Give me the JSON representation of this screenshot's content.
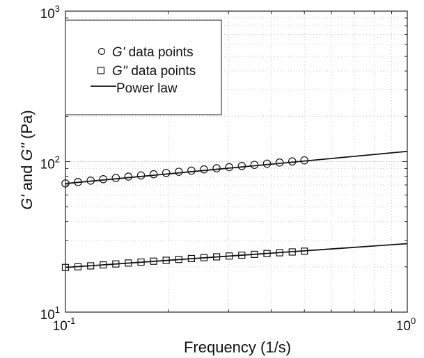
{
  "chart_data": {
    "type": "scatter",
    "x_scale": "log",
    "y_scale": "log",
    "xlim": [
      0.1,
      1
    ],
    "ylim": [
      10,
      1000
    ],
    "xlabel": "Frequency (1/s)",
    "ylabel": {
      "part1": "G'",
      "part2": " and ",
      "part3": "G''",
      "part4": " (Pa)"
    },
    "x_ticks": [
      {
        "base": "10",
        "exp": "-1"
      },
      {
        "base": "10",
        "exp": "0"
      }
    ],
    "y_ticks": [
      {
        "base": "10",
        "exp": "1"
      },
      {
        "base": "10",
        "exp": "2"
      },
      {
        "base": "10",
        "exp": "3"
      }
    ],
    "grid": true,
    "legend_position": "top-left",
    "legend": [
      {
        "marker": "circle",
        "symbol": "G'",
        "text": " data points"
      },
      {
        "marker": "square",
        "symbol": "G''",
        "text": " data points"
      },
      {
        "marker": "line",
        "symbol": "",
        "text": "Power law"
      }
    ],
    "series": [
      {
        "name": "G' data points",
        "marker": "circle",
        "x": [
          0.1,
          0.1088,
          0.1185,
          0.129,
          0.1404,
          0.1528,
          0.1664,
          0.1811,
          0.1971,
          0.2146,
          0.2336,
          0.2543,
          0.2768,
          0.3013,
          0.328,
          0.3571,
          0.3887,
          0.4232,
          0.4607,
          0.5
        ],
        "y": [
          71.6,
          73.2,
          74.8,
          76.4,
          77.9,
          79.5,
          80.9,
          82.5,
          84.1,
          85.6,
          87.1,
          88.8,
          90.3,
          91.9,
          93.5,
          95.2,
          96.9,
          98.6,
          100.3,
          102.0
        ]
      },
      {
        "name": "G'' data points",
        "marker": "square",
        "x": [
          0.1,
          0.1088,
          0.1185,
          0.129,
          0.1404,
          0.1528,
          0.1664,
          0.1811,
          0.1971,
          0.2146,
          0.2336,
          0.2543,
          0.2768,
          0.3013,
          0.328,
          0.3571,
          0.3887,
          0.4232,
          0.4607,
          0.5
        ],
        "y": [
          19.8,
          20.0,
          20.3,
          20.6,
          20.9,
          21.2,
          21.5,
          21.8,
          22.1,
          22.4,
          22.7,
          23.0,
          23.3,
          23.6,
          23.9,
          24.2,
          24.5,
          24.8,
          25.1,
          25.4
        ]
      },
      {
        "name": "Power law",
        "type": "line",
        "x": [
          0.1,
          1
        ],
        "y": [
          71.5,
          117
        ]
      },
      {
        "name": "Power law",
        "type": "line",
        "x": [
          0.1,
          1
        ],
        "y": [
          19.8,
          28.5
        ]
      }
    ]
  }
}
